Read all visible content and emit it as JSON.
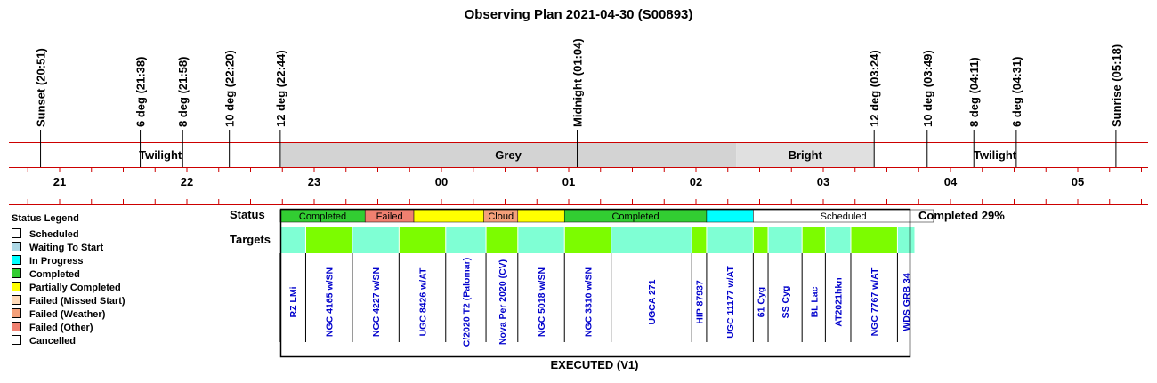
{
  "title": "Observing Plan 2021-04-30 (S00893)",
  "chart_data": {
    "type": "timeline",
    "time_axis": {
      "hour_labels": [
        {
          "label": "21",
          "hour": 21
        },
        {
          "label": "22",
          "hour": 22
        },
        {
          "label": "23",
          "hour": 23
        },
        {
          "label": "00",
          "hour": 24
        },
        {
          "label": "01",
          "hour": 25
        },
        {
          "label": "02",
          "hour": 26
        },
        {
          "label": "03",
          "hour": 27
        },
        {
          "label": "04",
          "hour": 28
        },
        {
          "label": "05",
          "hour": 29
        }
      ],
      "range": [
        20.6,
        29.55
      ]
    },
    "events": [
      {
        "label": "Sunset (20:51)",
        "time": "20:51"
      },
      {
        "label": "6 deg (21:38)",
        "time": "21:38"
      },
      {
        "label": "8 deg (21:58)",
        "time": "21:58"
      },
      {
        "label": "10 deg (22:20)",
        "time": "22:20"
      },
      {
        "label": "12 deg (22:44)",
        "time": "22:44"
      },
      {
        "label": "Midnight (01:04)",
        "time": "01:04"
      },
      {
        "label": "12 deg (03:24)",
        "time": "03:24"
      },
      {
        "label": "10 deg (03:49)",
        "time": "03:49"
      },
      {
        "label": "8 deg (04:11)",
        "time": "04:11"
      },
      {
        "label": "6 deg (04:31)",
        "time": "04:31"
      },
      {
        "label": "Sunrise (05:18)",
        "time": "05:18"
      }
    ],
    "sky_periods": [
      {
        "label": "Twilight",
        "start": "20:51",
        "end": "22:44",
        "color": "#ffffff"
      },
      {
        "label": "Grey",
        "start": "22:44",
        "end": "02:19",
        "color": "#d3d3d3"
      },
      {
        "label": "Bright",
        "start": "02:19",
        "end": "03:24",
        "color": "#e0e0e0"
      },
      {
        "label": "Twilight",
        "start": "03:24",
        "end": "05:18",
        "color": "#ffffff"
      }
    ],
    "status_row_label": "Status",
    "status_segments": [
      {
        "label": "Completed",
        "start": "22:44",
        "end": "23:24",
        "status": "Completed"
      },
      {
        "label": "Failed",
        "start": "23:24",
        "end": "23:47",
        "status": "Failed (Other)"
      },
      {
        "label": "",
        "start": "23:47",
        "end": "00:20",
        "status": "Partially Completed"
      },
      {
        "label": "Cloud",
        "start": "00:20",
        "end": "00:36",
        "status": "Failed (Weather)"
      },
      {
        "label": "",
        "start": "00:36",
        "end": "00:58",
        "status": "Partially Completed"
      },
      {
        "label": "Completed",
        "start": "00:58",
        "end": "02:05",
        "status": "Completed"
      },
      {
        "label": "",
        "start": "02:05",
        "end": "02:27",
        "status": "In Progress"
      },
      {
        "label": "Scheduled",
        "start": "02:27",
        "end": "03:52",
        "status": "Scheduled"
      }
    ],
    "status_summary": "Completed 29%",
    "targets_row_label": "Targets",
    "targets": [
      {
        "name": "RZ LMi",
        "start": "22:44",
        "end": "22:56",
        "color": "#7fffd4"
      },
      {
        "name": "NGC 4165 w/SN",
        "start": "22:56",
        "end": "23:18",
        "color": "#7cfc00"
      },
      {
        "name": "NGC 4227 w/SN",
        "start": "23:18",
        "end": "23:40",
        "color": "#7fffd4"
      },
      {
        "name": "UGC 8426 w/AT",
        "start": "23:40",
        "end": "00:02",
        "color": "#7cfc00"
      },
      {
        "name": "C/2020 T2 (Palomar)",
        "start": "00:02",
        "end": "00:21",
        "color": "#7fffd4"
      },
      {
        "name": "Nova Per 2020 (CV)",
        "start": "00:21",
        "end": "00:36",
        "color": "#7cfc00"
      },
      {
        "name": "NGC 5018 w/SN",
        "start": "00:36",
        "end": "00:58",
        "color": "#7fffd4"
      },
      {
        "name": "NGC 3310 w/SN",
        "start": "00:58",
        "end": "01:20",
        "color": "#7cfc00"
      },
      {
        "name": "UGCA 271",
        "start": "01:20",
        "end": "01:58",
        "color": "#7fffd4"
      },
      {
        "name": "HIP 87937",
        "start": "01:58",
        "end": "02:05",
        "color": "#7cfc00"
      },
      {
        "name": "UGC 11177 w/AT",
        "start": "02:05",
        "end": "02:27",
        "color": "#7fffd4"
      },
      {
        "name": "61 Cyg",
        "start": "02:27",
        "end": "02:34",
        "color": "#7cfc00"
      },
      {
        "name": "SS Cyg",
        "start": "02:34",
        "end": "02:50",
        "color": "#7fffd4"
      },
      {
        "name": "BL Lac",
        "start": "02:50",
        "end": "03:01",
        "color": "#7cfc00"
      },
      {
        "name": "AT2021hkn",
        "start": "03:01",
        "end": "03:13",
        "color": "#7fffd4"
      },
      {
        "name": "NGC 7767 w/AT",
        "start": "03:13",
        "end": "03:35",
        "color": "#7cfc00"
      },
      {
        "name": "WDS GRB 34",
        "start": "03:35",
        "end": "03:43",
        "color": "#7fffd4"
      }
    ],
    "footer": "EXECUTED (V1)"
  },
  "legend": {
    "title": "Status Legend",
    "items": [
      {
        "label": "Scheduled",
        "color": "#ffffff"
      },
      {
        "label": "Waiting To Start",
        "color": "#add8e6"
      },
      {
        "label": "In Progress",
        "color": "#00ffff"
      },
      {
        "label": "Completed",
        "color": "#32cd32"
      },
      {
        "label": "Partially Completed",
        "color": "#ffff00"
      },
      {
        "label": "Failed (Missed Start)",
        "color": "#ffdab9"
      },
      {
        "label": "Failed (Weather)",
        "color": "#f4a07a"
      },
      {
        "label": "Failed (Other)",
        "color": "#f08070"
      },
      {
        "label": "Cancelled",
        "color": "#ffffff"
      }
    ]
  },
  "colors": {
    "accent_line": "#cc0000",
    "target_text": "#0000cc",
    "grey_period": "#d3d3d3",
    "bright_period": "#e0e0e0"
  }
}
